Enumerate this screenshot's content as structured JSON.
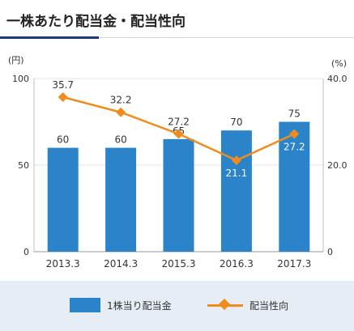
{
  "title": "一株あたり配当金・配当性向",
  "chart_data": {
    "type": "bar+line",
    "categories": [
      "2013.3",
      "2014.3",
      "2015.3",
      "2016.3",
      "2017.3"
    ],
    "series": [
      {
        "name": "1株当り配当金",
        "type": "bar",
        "axis": "left",
        "color": "#2b84c9",
        "values": [
          60,
          60,
          65,
          70,
          75
        ],
        "labels": [
          "60",
          "60",
          "65",
          "70",
          "75"
        ]
      },
      {
        "name": "配当性向",
        "type": "line",
        "axis": "right",
        "color": "#f08c1e",
        "values": [
          35.7,
          32.2,
          27.2,
          21.1,
          27.2
        ],
        "labels": [
          "35.7",
          "32.2",
          "27.2",
          "21.1",
          "27.2"
        ]
      }
    ],
    "y_left": {
      "unit": "(円)",
      "min": 0,
      "max": 100,
      "ticks": [
        0,
        50,
        100
      ],
      "tick_labels": [
        "0",
        "50",
        "100"
      ]
    },
    "y_right": {
      "unit": "(%)",
      "min": 0,
      "max": 40,
      "ticks": [
        0,
        20,
        40
      ],
      "tick_labels": [
        "0",
        "20.0",
        "40.0"
      ]
    },
    "grid": true,
    "legend_position": "bottom"
  },
  "legend": {
    "bar_label": "1株当り配当金",
    "line_label": "配当性向"
  }
}
